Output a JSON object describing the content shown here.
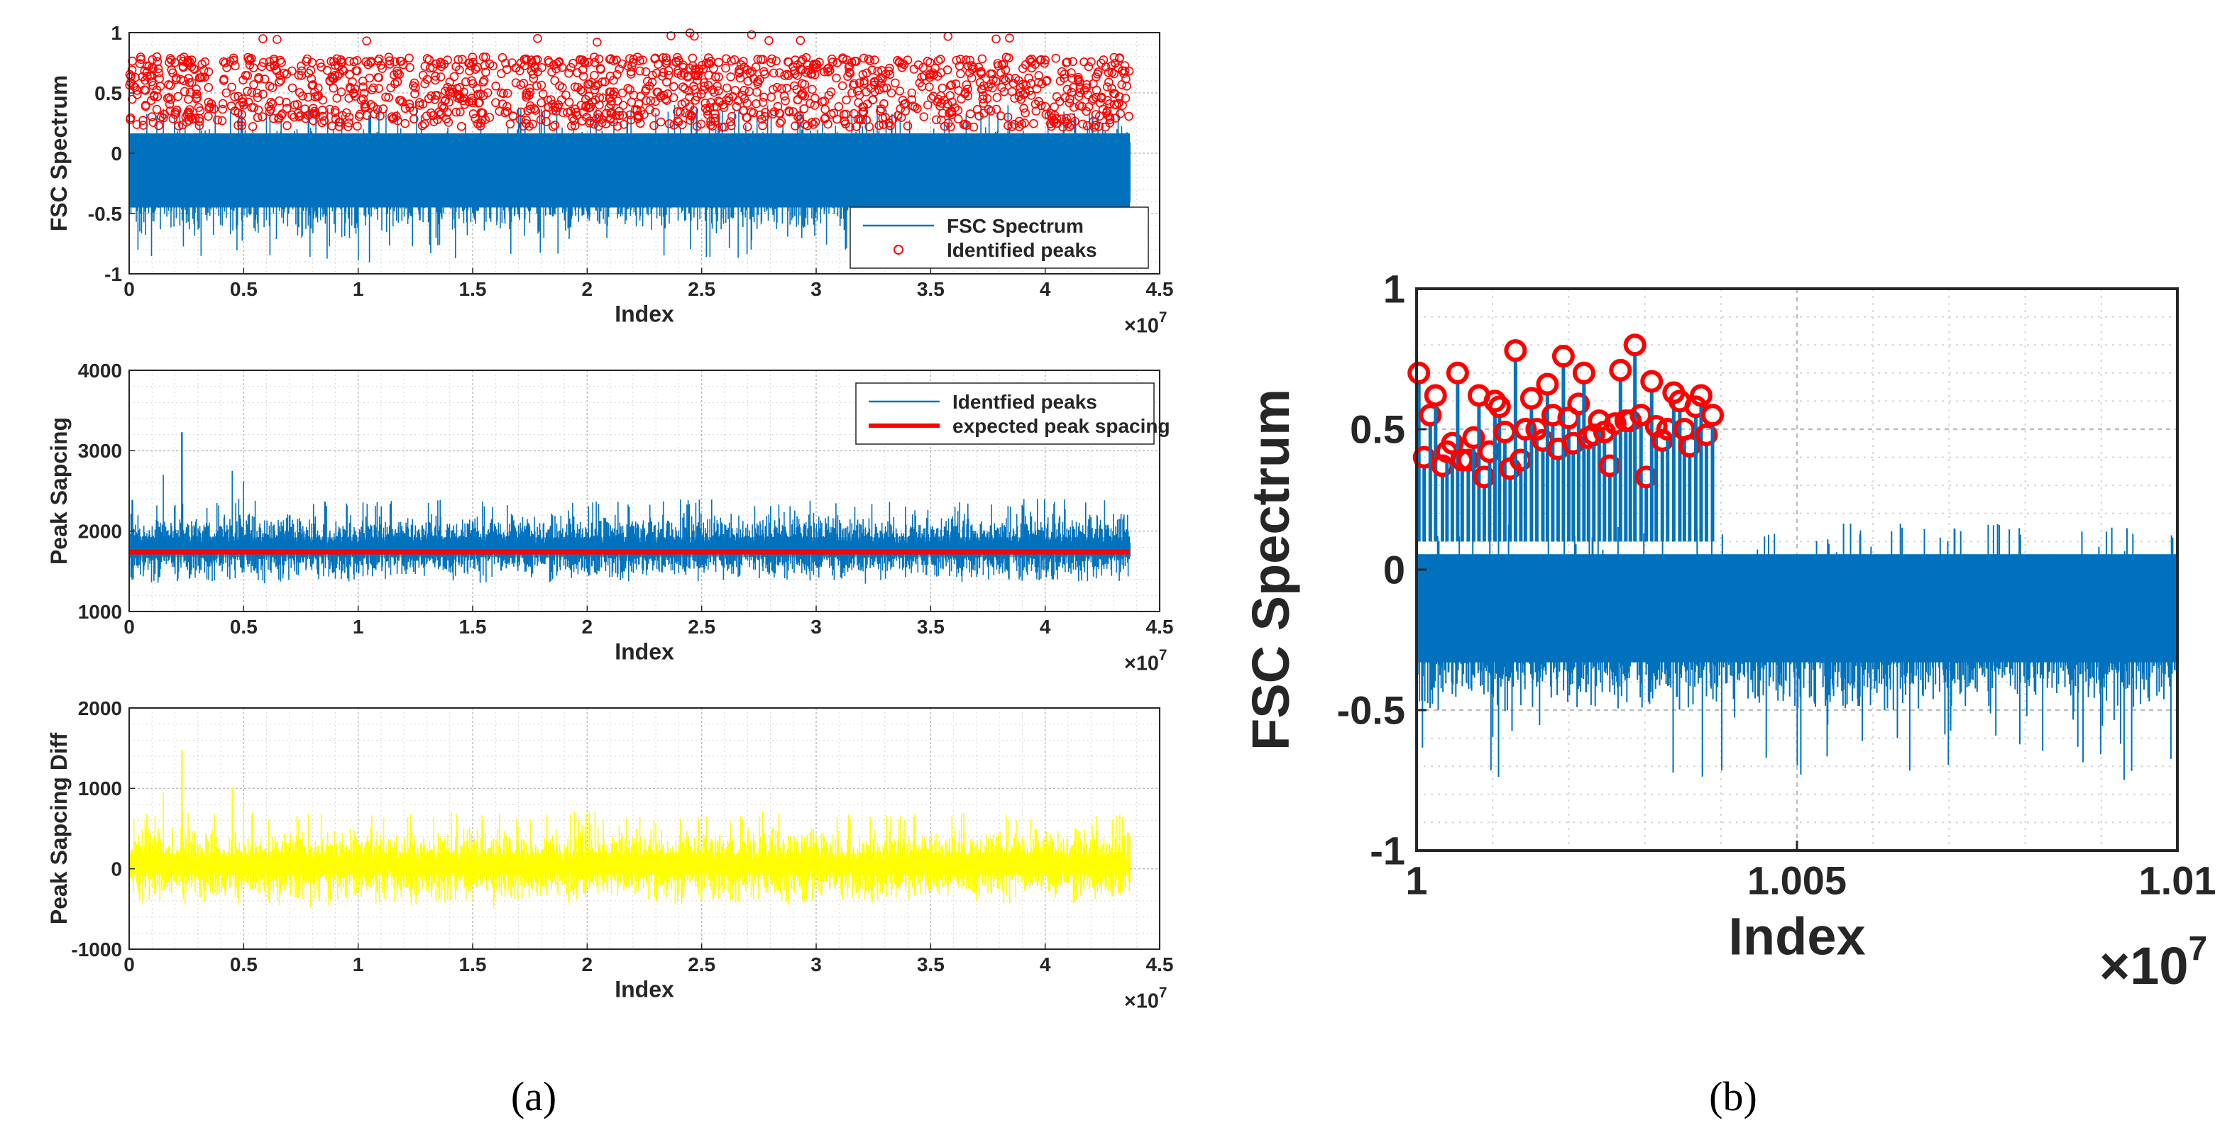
{
  "colors": {
    "spectrum": "#0072BD",
    "peaks": "#FF0000",
    "expected": "#FF0000",
    "diff": "#FFFF00",
    "grid": "#BDBDBD",
    "axis": "#262626"
  },
  "captions": {
    "a": "(a)",
    "b": "(b)"
  },
  "chart_data": [
    {
      "id": "a1",
      "type": "line",
      "ylabel": "FSC Spectrum",
      "xlabel": "Index",
      "x_multiplier": "×10",
      "x_exponent": "7",
      "xlim": [
        0,
        4.5
      ],
      "ylim": [
        -1,
        1
      ],
      "xticks": [
        "0",
        "0.5",
        "1",
        "1.5",
        "2",
        "2.5",
        "3",
        "3.5",
        "4",
        "4.5"
      ],
      "yticks": [
        "-1",
        "-0.5",
        "0",
        "0.5",
        "1"
      ],
      "grid": true,
      "legend_position": "bottom-right",
      "series": [
        {
          "name": "FSC Spectrum",
          "style": "line",
          "x_range": [
            0,
            4.37
          ],
          "approx_max": 0.3,
          "approx_min": -0.75,
          "extreme_min": -0.92
        },
        {
          "name": "Identified peaks",
          "style": "markers",
          "x_range": [
            0,
            4.37
          ],
          "approx_max": 0.8,
          "approx_min": 0.2,
          "extreme_max": 1.0
        }
      ]
    },
    {
      "id": "a2",
      "type": "line",
      "ylabel": "Peak Sapcing",
      "xlabel": "Index",
      "x_multiplier": "×10",
      "x_exponent": "7",
      "xlim": [
        0,
        4.5
      ],
      "ylim": [
        1000,
        4000
      ],
      "xticks": [
        "0",
        "0.5",
        "1",
        "1.5",
        "2",
        "2.5",
        "3",
        "3.5",
        "4",
        "4.5"
      ],
      "yticks": [
        "1000",
        "2000",
        "3000",
        "4000"
      ],
      "grid": true,
      "legend_position": "top-right",
      "series": [
        {
          "name": "Identfied peaks",
          "style": "line",
          "x_range": [
            0,
            4.37
          ],
          "approx_max": 2300,
          "approx_min": 1300,
          "spikes": [
            [
              0.15,
              2700
            ],
            [
              0.23,
              3230
            ],
            [
              0.45,
              2750
            ],
            [
              0.5,
              2620
            ]
          ]
        },
        {
          "name": "expected peak spacing",
          "style": "line",
          "x": [
            0,
            4.37
          ],
          "values": [
            1740,
            1740
          ]
        }
      ]
    },
    {
      "id": "a3",
      "type": "line",
      "ylabel": "Peak Sapcing Diff",
      "xlabel": "Index",
      "x_multiplier": "×10",
      "x_exponent": "7",
      "xlim": [
        0,
        4.5
      ],
      "ylim": [
        -1000,
        2000
      ],
      "xticks": [
        "0",
        "0.5",
        "1",
        "1.5",
        "2",
        "2.5",
        "3",
        "3.5",
        "4",
        "4.5"
      ],
      "yticks": [
        "-1000",
        "0",
        "1000",
        "2000"
      ],
      "grid": true,
      "series": [
        {
          "style": "line",
          "x_range": [
            0,
            4.37
          ],
          "approx_max": 600,
          "approx_min": -500,
          "spikes": [
            [
              0.15,
              950
            ],
            [
              0.23,
              1480
            ],
            [
              0.45,
              1020
            ],
            [
              0.5,
              830
            ]
          ]
        }
      ]
    },
    {
      "id": "b",
      "type": "line",
      "ylabel": "FSC Spectrum",
      "xlabel": "Index",
      "x_multiplier": "×10",
      "x_exponent": "7",
      "xlim": [
        1.0,
        1.01
      ],
      "ylim": [
        -1,
        1
      ],
      "xticks": [
        "1",
        "1.005",
        "1.01"
      ],
      "xtick_values": [
        1.0,
        1.005,
        1.01
      ],
      "yticks": [
        "-1",
        "-0.5",
        "0",
        "0.5",
        "1"
      ],
      "grid": true,
      "series": [
        {
          "style": "line",
          "x_range": [
            1.0,
            1.01
          ],
          "approx_max": 0.1,
          "approx_min": -0.55,
          "extreme_min": -0.75
        },
        {
          "style": "markers",
          "x": [
            1.00003,
            1.0001,
            1.00018,
            1.00025,
            1.00034,
            1.0004,
            1.00047,
            1.00054,
            1.0006,
            1.00068,
            1.00075,
            1.00082,
            1.00089,
            1.00096,
            1.00103,
            1.00109,
            1.00116,
            1.00123,
            1.0013,
            1.00137,
            1.00143,
            1.00151,
            1.00158,
            1.00166,
            1.00172,
            1.00179,
            1.00186,
            1.00193,
            1.002,
            1.00206,
            1.00213,
            1.0022,
            1.00226,
            1.00233,
            1.0024,
            1.00247,
            1.00254,
            1.00261,
            1.00268,
            1.00275,
            1.00281,
            1.00287,
            1.00295,
            1.00302,
            1.00309,
            1.00315,
            1.00323,
            1.0033,
            1.00338,
            1.00346,
            1.00352,
            1.00359,
            1.00367,
            1.00374,
            1.00381,
            1.00389
          ],
          "values": [
            0.7,
            0.4,
            0.55,
            0.62,
            0.37,
            0.42,
            0.45,
            0.7,
            0.39,
            0.39,
            0.47,
            0.62,
            0.33,
            0.42,
            0.6,
            0.58,
            0.49,
            0.36,
            0.78,
            0.39,
            0.5,
            0.61,
            0.5,
            0.46,
            0.66,
            0.55,
            0.43,
            0.76,
            0.54,
            0.45,
            0.59,
            0.7,
            0.47,
            0.48,
            0.53,
            0.49,
            0.37,
            0.52,
            0.71,
            0.53,
            0.53,
            0.8,
            0.55,
            0.33,
            0.67,
            0.51,
            0.46,
            0.5,
            0.63,
            0.6,
            0.5,
            0.44,
            0.58,
            0.62,
            0.48,
            0.55
          ]
        }
      ]
    }
  ]
}
